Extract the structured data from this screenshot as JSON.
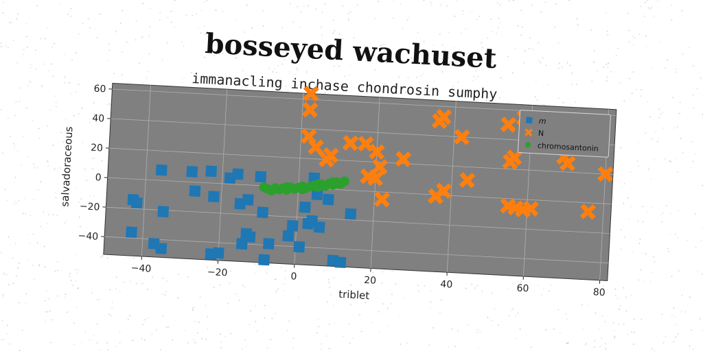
{
  "chart_data": {
    "type": "scatter",
    "title": "bosseyed wachuset",
    "subtitle": "immanacling inchase chondrosin sumphy",
    "xlabel": "triblet",
    "ylabel": "salvadoraceous",
    "xlim": [
      -50,
      82
    ],
    "ylim": [
      -52,
      64
    ],
    "xticks": [
      -40,
      -20,
      0,
      20,
      40,
      60,
      80
    ],
    "yticks": [
      -40,
      -20,
      0,
      20,
      40,
      60
    ],
    "grid": true,
    "legend_position": "top-right",
    "plot_background": "#808080",
    "series": [
      {
        "name": "m",
        "marker": "square",
        "color": "#1f77b4",
        "points": [
          [
            -43,
            -14
          ],
          [
            -42,
            -16
          ],
          [
            -36,
            7
          ],
          [
            -35,
            -21
          ],
          [
            -43,
            -36
          ],
          [
            -37,
            -43
          ],
          [
            -35,
            -46
          ],
          [
            -28,
            7
          ],
          [
            -27,
            -6
          ],
          [
            -23,
            8
          ],
          [
            -22,
            -9
          ],
          [
            -22,
            -48
          ],
          [
            -20,
            -47
          ],
          [
            -18,
            4
          ],
          [
            -16,
            7
          ],
          [
            -15,
            -13
          ],
          [
            -14,
            -40
          ],
          [
            -13,
            -10
          ],
          [
            -13,
            -33
          ],
          [
            -12,
            -35
          ],
          [
            -10,
            6
          ],
          [
            -9,
            -18
          ],
          [
            -8,
            -50
          ],
          [
            -7,
            -39
          ],
          [
            -2,
            -33
          ],
          [
            -1,
            -26
          ],
          [
            1,
            -40
          ],
          [
            2,
            -13
          ],
          [
            3,
            -24
          ],
          [
            4,
            -22
          ],
          [
            6,
            -26
          ],
          [
            5,
            -4
          ],
          [
            8,
            -7
          ],
          [
            10,
            -48
          ],
          [
            12,
            -49
          ],
          [
            14,
            -16
          ],
          [
            4,
            7
          ]
        ]
      },
      {
        "name": "N",
        "marker": "x",
        "color": "#ff7f0e",
        "points": [
          [
            2,
            64
          ],
          [
            2,
            53
          ],
          [
            2,
            35
          ],
          [
            4,
            28
          ],
          [
            7,
            20
          ],
          [
            8,
            23
          ],
          [
            13,
            32
          ],
          [
            17,
            32
          ],
          [
            20,
            27
          ],
          [
            21,
            17
          ],
          [
            18,
            10
          ],
          [
            20,
            9
          ],
          [
            22,
            -5
          ],
          [
            27,
            23
          ],
          [
            36,
            50
          ],
          [
            37,
            53
          ],
          [
            36,
            -1
          ],
          [
            38,
            3
          ],
          [
            42,
            40
          ],
          [
            44,
            11
          ],
          [
            54,
            50
          ],
          [
            55,
            25
          ],
          [
            56,
            28
          ],
          [
            58,
            55
          ],
          [
            55,
            -5
          ],
          [
            57,
            -6
          ],
          [
            59,
            -7
          ],
          [
            61,
            -6
          ],
          [
            69,
            30
          ],
          [
            70,
            26
          ],
          [
            76,
            -6
          ],
          [
            80,
            20
          ]
        ]
      },
      {
        "name": "chromosantonin",
        "marker": "circle",
        "color": "#2ca02c",
        "points": [
          [
            -8,
            -2
          ],
          [
            -7,
            -3
          ],
          [
            -6,
            -1
          ],
          [
            -5,
            -2
          ],
          [
            -4,
            -1
          ],
          [
            -3,
            -2
          ],
          [
            -2,
            0
          ],
          [
            -1,
            -1
          ],
          [
            0,
            0
          ],
          [
            1,
            1
          ],
          [
            2,
            0
          ],
          [
            3,
            1
          ],
          [
            4,
            2
          ],
          [
            5,
            1
          ],
          [
            6,
            3
          ],
          [
            7,
            2
          ],
          [
            8,
            4
          ],
          [
            9,
            3
          ],
          [
            10,
            5
          ],
          [
            11,
            4
          ],
          [
            12,
            6
          ],
          [
            -9,
            -1
          ],
          [
            -3,
            0
          ],
          [
            1,
            -1
          ],
          [
            5,
            3
          ],
          [
            9,
            5
          ]
        ]
      }
    ]
  }
}
